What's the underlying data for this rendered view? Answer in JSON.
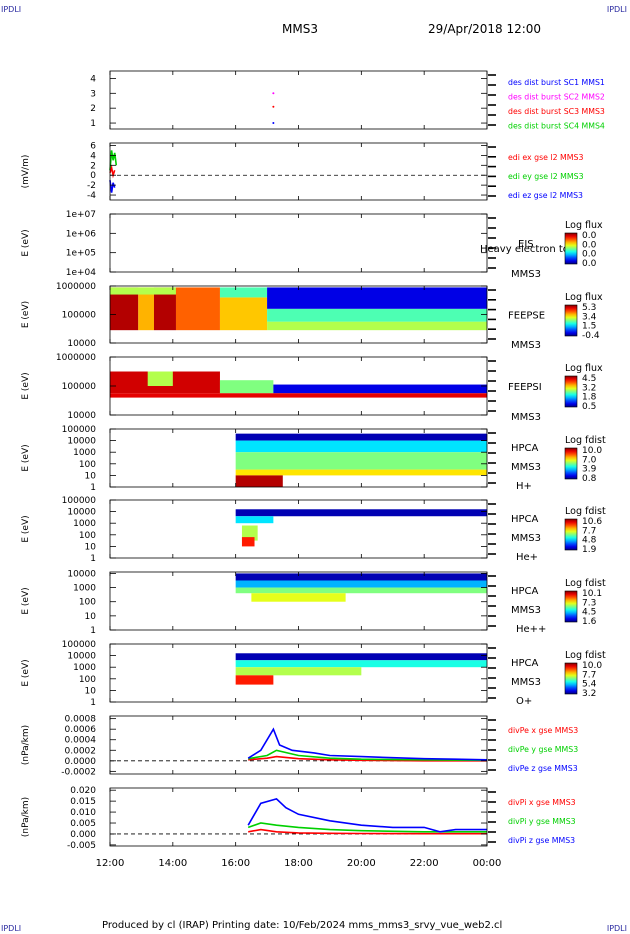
{
  "header": {
    "corner_tl": "IPDLI",
    "corner_tr": "IPDLI",
    "corner_bl": "IPDLI",
    "corner_br": "IPDLI",
    "spacecraft": "MMS3",
    "datetime": "29/Apr/2018 12:00"
  },
  "footer": {
    "text": "Produced by cl (IRAP)   Printing date: 10/Feb/2024   mms_mms3_srvy_vue_web2.cl"
  },
  "colors": {
    "blue": "#0000ff",
    "magenta": "#ff00ff",
    "red": "#ff0000",
    "green": "#00d000"
  },
  "time_axis": {
    "ticks": [
      "12:00",
      "14:00",
      "16:00",
      "18:00",
      "20:00",
      "22:00",
      "00:00"
    ],
    "tick_hours": [
      12,
      14,
      16,
      18,
      20,
      22,
      24
    ],
    "range_hours": [
      12,
      24
    ]
  },
  "chart_data": [
    {
      "type": "scatter",
      "id": "panel1",
      "ylabel": "",
      "yticks": [
        "1",
        "2",
        "3",
        "4"
      ],
      "ytick_values": [
        1,
        2,
        3,
        4
      ],
      "ylim": [
        0.6,
        4.5
      ],
      "legend": [
        {
          "label": "des dist burst SC1 MMS1",
          "color": "#0000ff"
        },
        {
          "label": "des dist burst SC2 MMS2",
          "color": "#ff00ff"
        },
        {
          "label": "des dist burst SC3 MMS3",
          "color": "#ff0000"
        },
        {
          "label": "des dist burst SC4 MMS4",
          "color": "#00d000"
        }
      ],
      "points": [
        {
          "x": 17.2,
          "y": 3.0,
          "series": 1
        },
        {
          "x": 17.2,
          "y": 2.1,
          "series": 2
        },
        {
          "x": 17.2,
          "y": 1.0,
          "series": 0
        }
      ]
    },
    {
      "type": "line",
      "id": "panel2",
      "ylabel": "(mV/m)",
      "yticks": [
        "-4",
        "-2",
        "0",
        "2",
        "4",
        "6"
      ],
      "ytick_values": [
        -4,
        -2,
        0,
        2,
        4,
        6
      ],
      "ylim": [
        -5,
        6.5
      ],
      "legend": [
        {
          "label": "edi ex gse l2 MMS3",
          "color": "#ff0000"
        },
        {
          "label": "edi ey gse l2 MMS3",
          "color": "#00d000"
        },
        {
          "label": "edi ez gse l2 MMS3",
          "color": "#0000ff"
        }
      ],
      "series": [
        {
          "color": "#00d000",
          "x": [
            12.0,
            12.05,
            12.1,
            12.15,
            12.2
          ],
          "y": [
            1.0,
            5.0,
            3.0,
            4.5,
            2.0
          ]
        },
        {
          "color": "#ff0000",
          "x": [
            12.0,
            12.05,
            12.1,
            12.15
          ],
          "y": [
            0.5,
            1.5,
            0.0,
            1.0
          ]
        },
        {
          "color": "#0000ff",
          "x": [
            12.0,
            12.05,
            12.1,
            12.15
          ],
          "y": [
            -1.0,
            -3.5,
            -1.5,
            -2.5
          ]
        }
      ]
    },
    {
      "type": "heatmap",
      "id": "panel3",
      "ylabel": "E (eV)",
      "yticks": [
        "1e+04",
        "1e+05",
        "1e+06",
        "1e+07"
      ],
      "ytick_values": [
        4,
        5,
        6,
        7
      ],
      "ylim": [
        4,
        7
      ],
      "instrument": "EIS",
      "spacecraft": "MMS3",
      "overlay_text": "Heavy electron to",
      "colorbar": {
        "title": "Log flux",
        "labels": [
          "0.0",
          "0.0",
          "0.0",
          "0.0"
        ]
      },
      "blocks": []
    },
    {
      "type": "heatmap",
      "id": "panel4",
      "ylabel": "E (eV)",
      "yticks": [
        "10000",
        "100000",
        "1000000"
      ],
      "ytick_values": [
        4,
        5,
        6
      ],
      "ylim": [
        4,
        6
      ],
      "instrument": "FEEPSE",
      "spacecraft": "MMS3",
      "colorbar": {
        "title": "Log flux",
        "labels": [
          "5.3",
          "3.4",
          "1.5",
          "-0.4"
        ]
      },
      "blocks": [
        {
          "x0": 12.0,
          "x1": 12.9,
          "y0": 4.45,
          "y1": 5.95,
          "c": 0.95
        },
        {
          "x0": 12.9,
          "x1": 13.4,
          "y0": 4.45,
          "y1": 5.95,
          "c": 0.7
        },
        {
          "x0": 13.4,
          "x1": 14.1,
          "y0": 4.45,
          "y1": 5.95,
          "c": 0.95
        },
        {
          "x0": 12.0,
          "x1": 14.1,
          "y0": 5.7,
          "y1": 5.95,
          "c": 0.55
        },
        {
          "x0": 14.1,
          "x1": 15.5,
          "y0": 4.45,
          "y1": 5.95,
          "c": 0.78
        },
        {
          "x0": 15.5,
          "x1": 17.0,
          "y0": 4.45,
          "y1": 5.6,
          "c": 0.68
        },
        {
          "x0": 15.5,
          "x1": 17.0,
          "y0": 5.6,
          "y1": 5.95,
          "c": 0.45
        },
        {
          "x0": 17.0,
          "x1": 24.0,
          "y0": 4.45,
          "y1": 4.75,
          "c": 0.55
        },
        {
          "x0": 17.0,
          "x1": 24.0,
          "y0": 4.75,
          "y1": 5.2,
          "c": 0.45
        },
        {
          "x0": 17.0,
          "x1": 24.0,
          "y0": 5.2,
          "y1": 5.95,
          "c": 0.1
        }
      ]
    },
    {
      "type": "heatmap",
      "id": "panel5",
      "ylabel": "E (eV)",
      "yticks": [
        "10000",
        "100000",
        "1000000"
      ],
      "ytick_values": [
        4,
        5,
        6
      ],
      "ylim": [
        4,
        6
      ],
      "instrument": "FEEPSI",
      "spacecraft": "MMS3",
      "colorbar": {
        "title": "Log flux",
        "labels": [
          "4.5",
          "3.2",
          "1.8",
          "0.5"
        ]
      },
      "blocks": [
        {
          "x0": 12.0,
          "x1": 15.5,
          "y0": 4.75,
          "y1": 5.5,
          "c": 0.92
        },
        {
          "x0": 13.2,
          "x1": 14.0,
          "y0": 5.0,
          "y1": 5.5,
          "c": 0.55
        },
        {
          "x0": 15.5,
          "x1": 17.2,
          "y0": 4.75,
          "y1": 5.2,
          "c": 0.5
        },
        {
          "x0": 17.2,
          "x1": 24.0,
          "y0": 4.75,
          "y1": 5.05,
          "c": 0.1
        },
        {
          "x0": 12.0,
          "x1": 24.0,
          "y0": 4.6,
          "y1": 4.75,
          "c": 0.9
        }
      ]
    },
    {
      "type": "heatmap",
      "id": "panel6",
      "ylabel": "E (eV)",
      "yticks": [
        "1",
        "10",
        "100",
        "1000",
        "10000",
        "100000"
      ],
      "ytick_values": [
        0,
        1,
        2,
        3,
        4,
        5
      ],
      "ylim": [
        0,
        5
      ],
      "instrument": "HPCA",
      "spacecraft": "MMS3",
      "ion": "H+",
      "colorbar": {
        "title": "Log fdist",
        "labels": [
          "10.0",
          "7.0",
          "3.9",
          "0.8"
        ]
      },
      "blocks": [
        {
          "x0": 16.0,
          "x1": 24.0,
          "y0": 4.0,
          "y1": 4.6,
          "c": 0.05
        },
        {
          "x0": 16.0,
          "x1": 24.0,
          "y0": 3.0,
          "y1": 4.0,
          "c": 0.35
        },
        {
          "x0": 16.0,
          "x1": 24.0,
          "y0": 1.5,
          "y1": 3.0,
          "c": 0.5
        },
        {
          "x0": 16.0,
          "x1": 24.0,
          "y0": 1.0,
          "y1": 1.5,
          "c": 0.65
        },
        {
          "x0": 16.0,
          "x1": 17.5,
          "y0": 0.0,
          "y1": 1.0,
          "c": 0.95
        }
      ]
    },
    {
      "type": "heatmap",
      "id": "panel7",
      "ylabel": "E (eV)",
      "yticks": [
        "1",
        "10",
        "100",
        "1000",
        "10000",
        "100000"
      ],
      "ytick_values": [
        0,
        1,
        2,
        3,
        4,
        5
      ],
      "ylim": [
        0,
        5
      ],
      "instrument": "HPCA",
      "spacecraft": "MMS3",
      "ion": "He+",
      "colorbar": {
        "title": "Log fdist",
        "labels": [
          "10.6",
          "7.7",
          "4.8",
          "1.9"
        ]
      },
      "blocks": [
        {
          "x0": 16.0,
          "x1": 24.0,
          "y0": 3.6,
          "y1": 4.2,
          "c": 0.05
        },
        {
          "x0": 16.0,
          "x1": 17.2,
          "y0": 3.0,
          "y1": 3.6,
          "c": 0.35
        },
        {
          "x0": 16.2,
          "x1": 16.7,
          "y0": 1.5,
          "y1": 2.8,
          "c": 0.55
        },
        {
          "x0": 16.2,
          "x1": 16.6,
          "y0": 1.0,
          "y1": 1.8,
          "c": 0.85
        }
      ]
    },
    {
      "type": "heatmap",
      "id": "panel8",
      "ylabel": "E (eV)",
      "yticks": [
        "1",
        "10",
        "100",
        "1000",
        "10000"
      ],
      "ytick_values": [
        0,
        1,
        2,
        3,
        4
      ],
      "ylim": [
        0,
        4.1
      ],
      "instrument": "HPCA",
      "spacecraft": "MMS3",
      "ion": "He++",
      "colorbar": {
        "title": "Log fdist",
        "labels": [
          "10.1",
          "7.3",
          "4.5",
          "1.6"
        ]
      },
      "blocks": [
        {
          "x0": 16.0,
          "x1": 24.0,
          "y0": 3.5,
          "y1": 4.0,
          "c": 0.05
        },
        {
          "x0": 16.0,
          "x1": 24.0,
          "y0": 3.0,
          "y1": 3.5,
          "c": 0.3
        },
        {
          "x0": 16.0,
          "x1": 24.0,
          "y0": 2.6,
          "y1": 3.0,
          "c": 0.5
        },
        {
          "x0": 16.5,
          "x1": 19.5,
          "y0": 2.0,
          "y1": 2.6,
          "c": 0.6
        }
      ]
    },
    {
      "type": "heatmap",
      "id": "panel9",
      "ylabel": "E (eV)",
      "yticks": [
        "1",
        "10",
        "100",
        "1000",
        "10000",
        "100000"
      ],
      "ytick_values": [
        0,
        1,
        2,
        3,
        4,
        5
      ],
      "ylim": [
        0,
        5
      ],
      "instrument": "HPCA",
      "spacecraft": "MMS3",
      "ion": "O+",
      "colorbar": {
        "title": "Log fdist",
        "labels": [
          "10.0",
          "7.7",
          "5.4",
          "3.2"
        ]
      },
      "blocks": [
        {
          "x0": 16.0,
          "x1": 24.0,
          "y0": 3.6,
          "y1": 4.2,
          "c": 0.05
        },
        {
          "x0": 16.0,
          "x1": 24.0,
          "y0": 3.0,
          "y1": 3.6,
          "c": 0.4
        },
        {
          "x0": 16.0,
          "x1": 20.0,
          "y0": 2.3,
          "y1": 3.0,
          "c": 0.55
        },
        {
          "x0": 16.0,
          "x1": 17.2,
          "y0": 1.5,
          "y1": 2.3,
          "c": 0.85
        }
      ]
    },
    {
      "type": "line",
      "id": "panel10",
      "ylabel": "(nPa/km)",
      "yticks": [
        "-0.0002",
        "0.0000",
        "0.0002",
        "0.0004",
        "0.0006",
        "0.0008"
      ],
      "ytick_values": [
        -0.0002,
        0,
        0.0002,
        0.0004,
        0.0006,
        0.0008
      ],
      "ylim": [
        -0.00025,
        0.00085
      ],
      "legend": [
        {
          "label": "divPe x gse MMS3",
          "color": "#ff0000"
        },
        {
          "label": "divPe y gse MMS3",
          "color": "#00d000"
        },
        {
          "label": "divPe z gse MMS3",
          "color": "#0000ff"
        }
      ],
      "series": [
        {
          "color": "#ff0000",
          "x": [
            16.4,
            17.0,
            17.3,
            18.0,
            19.0,
            20.0,
            22.0,
            24.0
          ],
          "y": [
            2e-05,
            5e-05,
            8e-05,
            4e-05,
            2e-05,
            1e-05,
            0.0,
            0.0
          ]
        },
        {
          "color": "#00d000",
          "x": [
            16.4,
            17.0,
            17.3,
            18.0,
            19.0,
            20.0,
            22.0,
            24.0
          ],
          "y": [
            4e-05,
            0.0001,
            0.0002,
            0.0001,
            5e-05,
            3e-05,
            2e-05,
            1e-05
          ]
        },
        {
          "color": "#0000ff",
          "x": [
            16.4,
            16.8,
            17.2,
            17.4,
            17.8,
            18.5,
            19.0,
            20.0,
            21.0,
            22.0,
            23.0,
            24.0
          ],
          "y": [
            5e-05,
            0.0002,
            0.0006,
            0.0003,
            0.0002,
            0.00015,
            0.0001,
            8e-05,
            6e-05,
            4e-05,
            3e-05,
            2e-05
          ]
        }
      ]
    },
    {
      "type": "line",
      "id": "panel11",
      "ylabel": "(nPa/km)",
      "yticks": [
        "-0.005",
        "0.000",
        "0.005",
        "0.010",
        "0.015",
        "0.020"
      ],
      "ytick_values": [
        -0.005,
        0,
        0.005,
        0.01,
        0.015,
        0.02
      ],
      "ylim": [
        -0.0055,
        0.021
      ],
      "legend": [
        {
          "label": "divPi x gse MMS3",
          "color": "#ff0000"
        },
        {
          "label": "divPi y gse MMS3",
          "color": "#00d000"
        },
        {
          "label": "divPi z gse MMS3",
          "color": "#0000ff"
        }
      ],
      "series": [
        {
          "color": "#ff0000",
          "x": [
            16.4,
            16.8,
            17.3,
            18.0,
            19.0,
            20.0,
            22.0,
            24.0
          ],
          "y": [
            0.001,
            0.002,
            0.001,
            0.0005,
            0.0003,
            0.0002,
            0.0001,
            0.0001
          ]
        },
        {
          "color": "#00d000",
          "x": [
            16.4,
            16.8,
            17.3,
            18.0,
            19.0,
            20.0,
            22.0,
            24.0
          ],
          "y": [
            0.003,
            0.005,
            0.004,
            0.003,
            0.002,
            0.0015,
            0.001,
            0.001
          ]
        },
        {
          "color": "#0000ff",
          "x": [
            16.4,
            16.8,
            17.3,
            17.6,
            18.0,
            19.0,
            20.0,
            21.0,
            22.0,
            22.5,
            23.0,
            24.0
          ],
          "y": [
            0.004,
            0.014,
            0.016,
            0.012,
            0.009,
            0.006,
            0.004,
            0.003,
            0.003,
            0.001,
            0.002,
            0.002
          ]
        }
      ]
    }
  ]
}
